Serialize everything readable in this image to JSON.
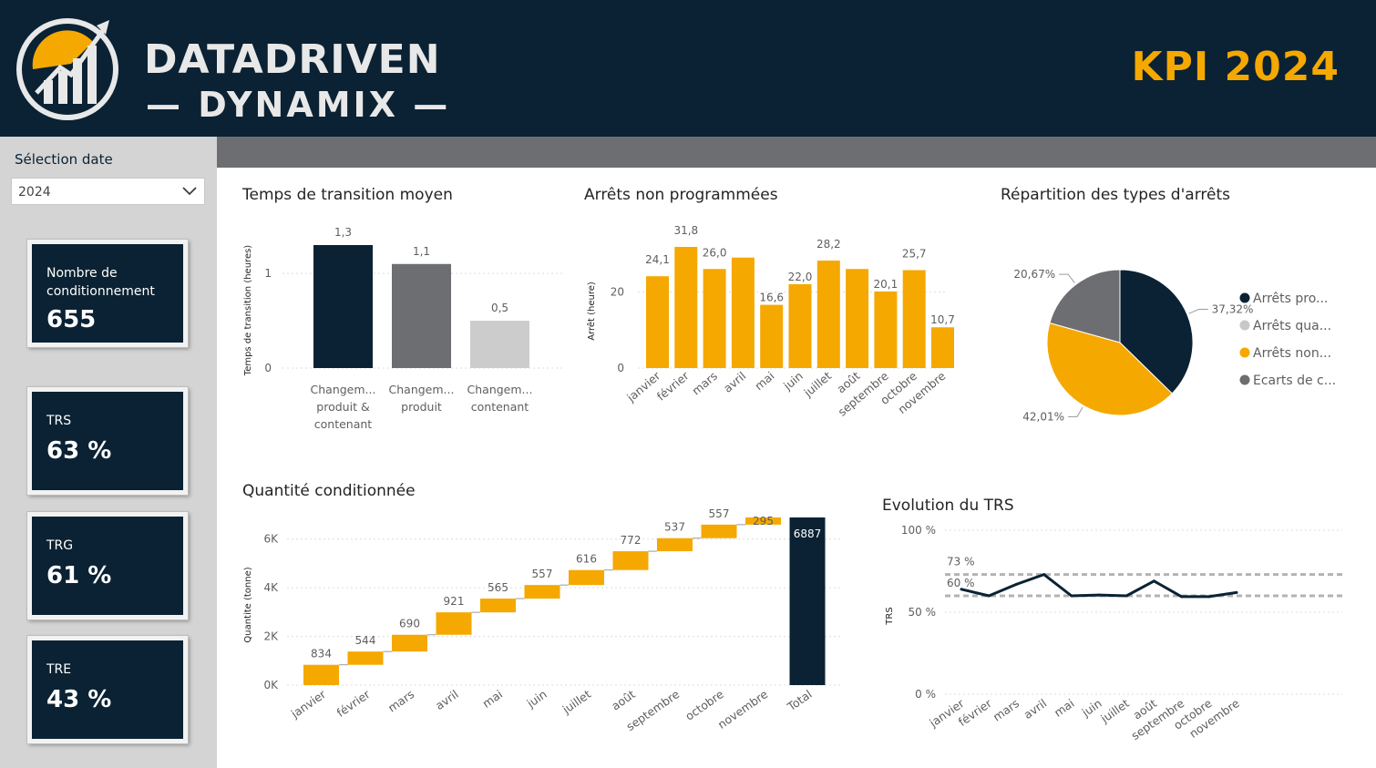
{
  "header": {
    "brand_line1": "DATADRIVEN",
    "brand_line2": "— DYNAMIX —",
    "kpi_title": "KPI 2024"
  },
  "selection": {
    "label": "Sélection date",
    "value": "2024"
  },
  "cards": [
    {
      "label_line1": "Nombre de",
      "label_line2": "conditionnement",
      "value": "655"
    },
    {
      "label_line1": "TRS",
      "label_line2": "",
      "value": "63 %"
    },
    {
      "label_line1": "TRG",
      "label_line2": "",
      "value": "61 %"
    },
    {
      "label_line1": "TRE",
      "label_line2": "",
      "value": "43 %"
    }
  ],
  "colors": {
    "navy": "#0a2233",
    "orange": "#f5a800",
    "grey": "#6d6e71",
    "lightgrey": "#cccccc"
  },
  "chart_data": [
    {
      "id": "transition",
      "type": "bar",
      "title": "Temps de transition moyen",
      "ylabel": "Temps de transition (heures)",
      "categories": [
        [
          "Changem...",
          "produit &",
          "contenant"
        ],
        [
          "Changem...",
          "produit"
        ],
        [
          "Changem...",
          "contenant"
        ]
      ],
      "values": [
        1.3,
        1.1,
        0.5
      ],
      "value_labels": [
        "1,3",
        "1,1",
        "0,5"
      ],
      "colors": [
        "#0a2233",
        "#6d6e71",
        "#cccccc"
      ],
      "yticks": [
        0,
        1
      ],
      "ylim": [
        0,
        1.3
      ]
    },
    {
      "id": "arrets",
      "type": "bar",
      "title": "Arrêts non programmées",
      "ylabel": "Arrêt (heure)",
      "categories": [
        "janvier",
        "février",
        "mars",
        "avril",
        "mai",
        "juin",
        "juillet",
        "août",
        "septembre",
        "octobre",
        "novembre"
      ],
      "values": [
        24.1,
        31.8,
        26.0,
        29.0,
        16.6,
        22.0,
        28.2,
        26.0,
        20.1,
        25.7,
        10.7
      ],
      "value_labels": [
        "24,1",
        "31,8",
        "26,0",
        "",
        "16,6",
        "22,0",
        "28,2",
        "",
        "20,1",
        "25,7",
        "10,7"
      ],
      "yticks": [
        0,
        20
      ],
      "ylim": [
        0,
        31.8
      ]
    },
    {
      "id": "repartition",
      "type": "pie",
      "title": "Répartition des types d'arrêts",
      "slices": [
        {
          "name": "Arrêts pro...",
          "value": 37.32,
          "label": "37,32%",
          "color": "#0a2233"
        },
        {
          "name": "Arrêts qua...",
          "value": 0.0,
          "label": "",
          "color": "#c8c8c8"
        },
        {
          "name": "Arrêts non...",
          "value": 42.01,
          "label": "42,01%",
          "color": "#f5a800"
        },
        {
          "name": "Ecarts de c...",
          "value": 20.67,
          "label": "20,67%",
          "color": "#6d6e71"
        }
      ],
      "legend": "right"
    },
    {
      "id": "quantite",
      "type": "waterfall",
      "title": "Quantité conditionnée",
      "ylabel": "Quantite (tonne)",
      "categories": [
        "janvier",
        "février",
        "mars",
        "avril",
        "mai",
        "juin",
        "juillet",
        "août",
        "septembre",
        "octobre",
        "novembre",
        "Total"
      ],
      "values": [
        834,
        544,
        690,
        921,
        565,
        557,
        616,
        772,
        537,
        557,
        295,
        6887
      ],
      "value_labels": [
        "834",
        "544",
        "690",
        "921",
        "565",
        "557",
        "616",
        "772",
        "537",
        "557",
        "295",
        "6887"
      ],
      "yticks": [
        0,
        2000,
        4000,
        6000
      ],
      "ytick_labels": [
        "0K",
        "2K",
        "4K",
        "6K"
      ],
      "ylim": [
        0,
        6887
      ]
    },
    {
      "id": "trs",
      "type": "line",
      "title": "Evolution du TRS",
      "ylabel": "TRS",
      "categories": [
        "janvier",
        "février",
        "mars",
        "avril",
        "mai",
        "juin",
        "juillet",
        "août",
        "septembre",
        "octobre",
        "novembre"
      ],
      "values": [
        64,
        60,
        67,
        73,
        60,
        60.5,
        60,
        69,
        59.5,
        59.5,
        62
      ],
      "reference_lines": [
        {
          "value": 73,
          "label": "73 %"
        },
        {
          "value": 60,
          "label": "60 %"
        }
      ],
      "yticks": [
        0,
        50,
        100
      ],
      "ytick_labels": [
        "0 %",
        "50 %",
        "100 %"
      ],
      "ylim": [
        0,
        100
      ]
    }
  ]
}
